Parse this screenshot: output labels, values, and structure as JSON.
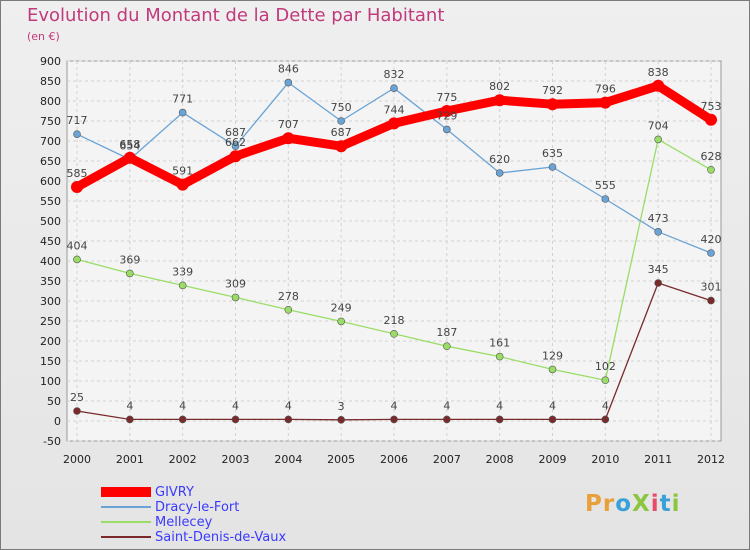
{
  "header": {
    "title": "Evolution du Montant de la Dette par Habitant",
    "subtitle": "(en €)"
  },
  "logo": {
    "text": "ProXiti",
    "colors": [
      "#e8a13a",
      "#e8a13a",
      "#3aa0d8",
      "#8cc63f",
      "#e84a6a",
      "#3aa0d8",
      "#8cc63f"
    ]
  },
  "chart_data": {
    "type": "line",
    "title": "Evolution du Montant de la Dette par Habitant",
    "subtitle": "(en €)",
    "xlabel": "",
    "ylabel": "",
    "x": [
      2000,
      2001,
      2002,
      2003,
      2004,
      2005,
      2006,
      2007,
      2008,
      2009,
      2010,
      2011,
      2012
    ],
    "ylim": [
      -50,
      900
    ],
    "yticks": [
      -50,
      0,
      50,
      100,
      150,
      200,
      250,
      300,
      350,
      400,
      450,
      500,
      550,
      600,
      650,
      700,
      750,
      800,
      850,
      900
    ],
    "grid": true,
    "legend": "bottom-left",
    "series": [
      {
        "name": "GIVRY",
        "color": "#ff0000",
        "values": [
          585,
          658,
          591,
          662,
          707,
          687,
          744,
          775,
          802,
          792,
          796,
          838,
          753
        ]
      },
      {
        "name": "Dracy-le-Fort",
        "color": "#6aa3d5",
        "values": [
          717,
          654,
          771,
          687,
          846,
          750,
          832,
          729,
          620,
          635,
          555,
          473,
          420
        ]
      },
      {
        "name": "Mellecey",
        "color": "#99dd66",
        "values": [
          404,
          369,
          339,
          309,
          278,
          249,
          218,
          187,
          161,
          129,
          102,
          704,
          628
        ]
      },
      {
        "name": "Saint-Denis-de-Vaux",
        "color": "#7a2a2a",
        "values": [
          25,
          4,
          4,
          4,
          4,
          3,
          4,
          4,
          4,
          4,
          4,
          345,
          301
        ]
      }
    ]
  }
}
